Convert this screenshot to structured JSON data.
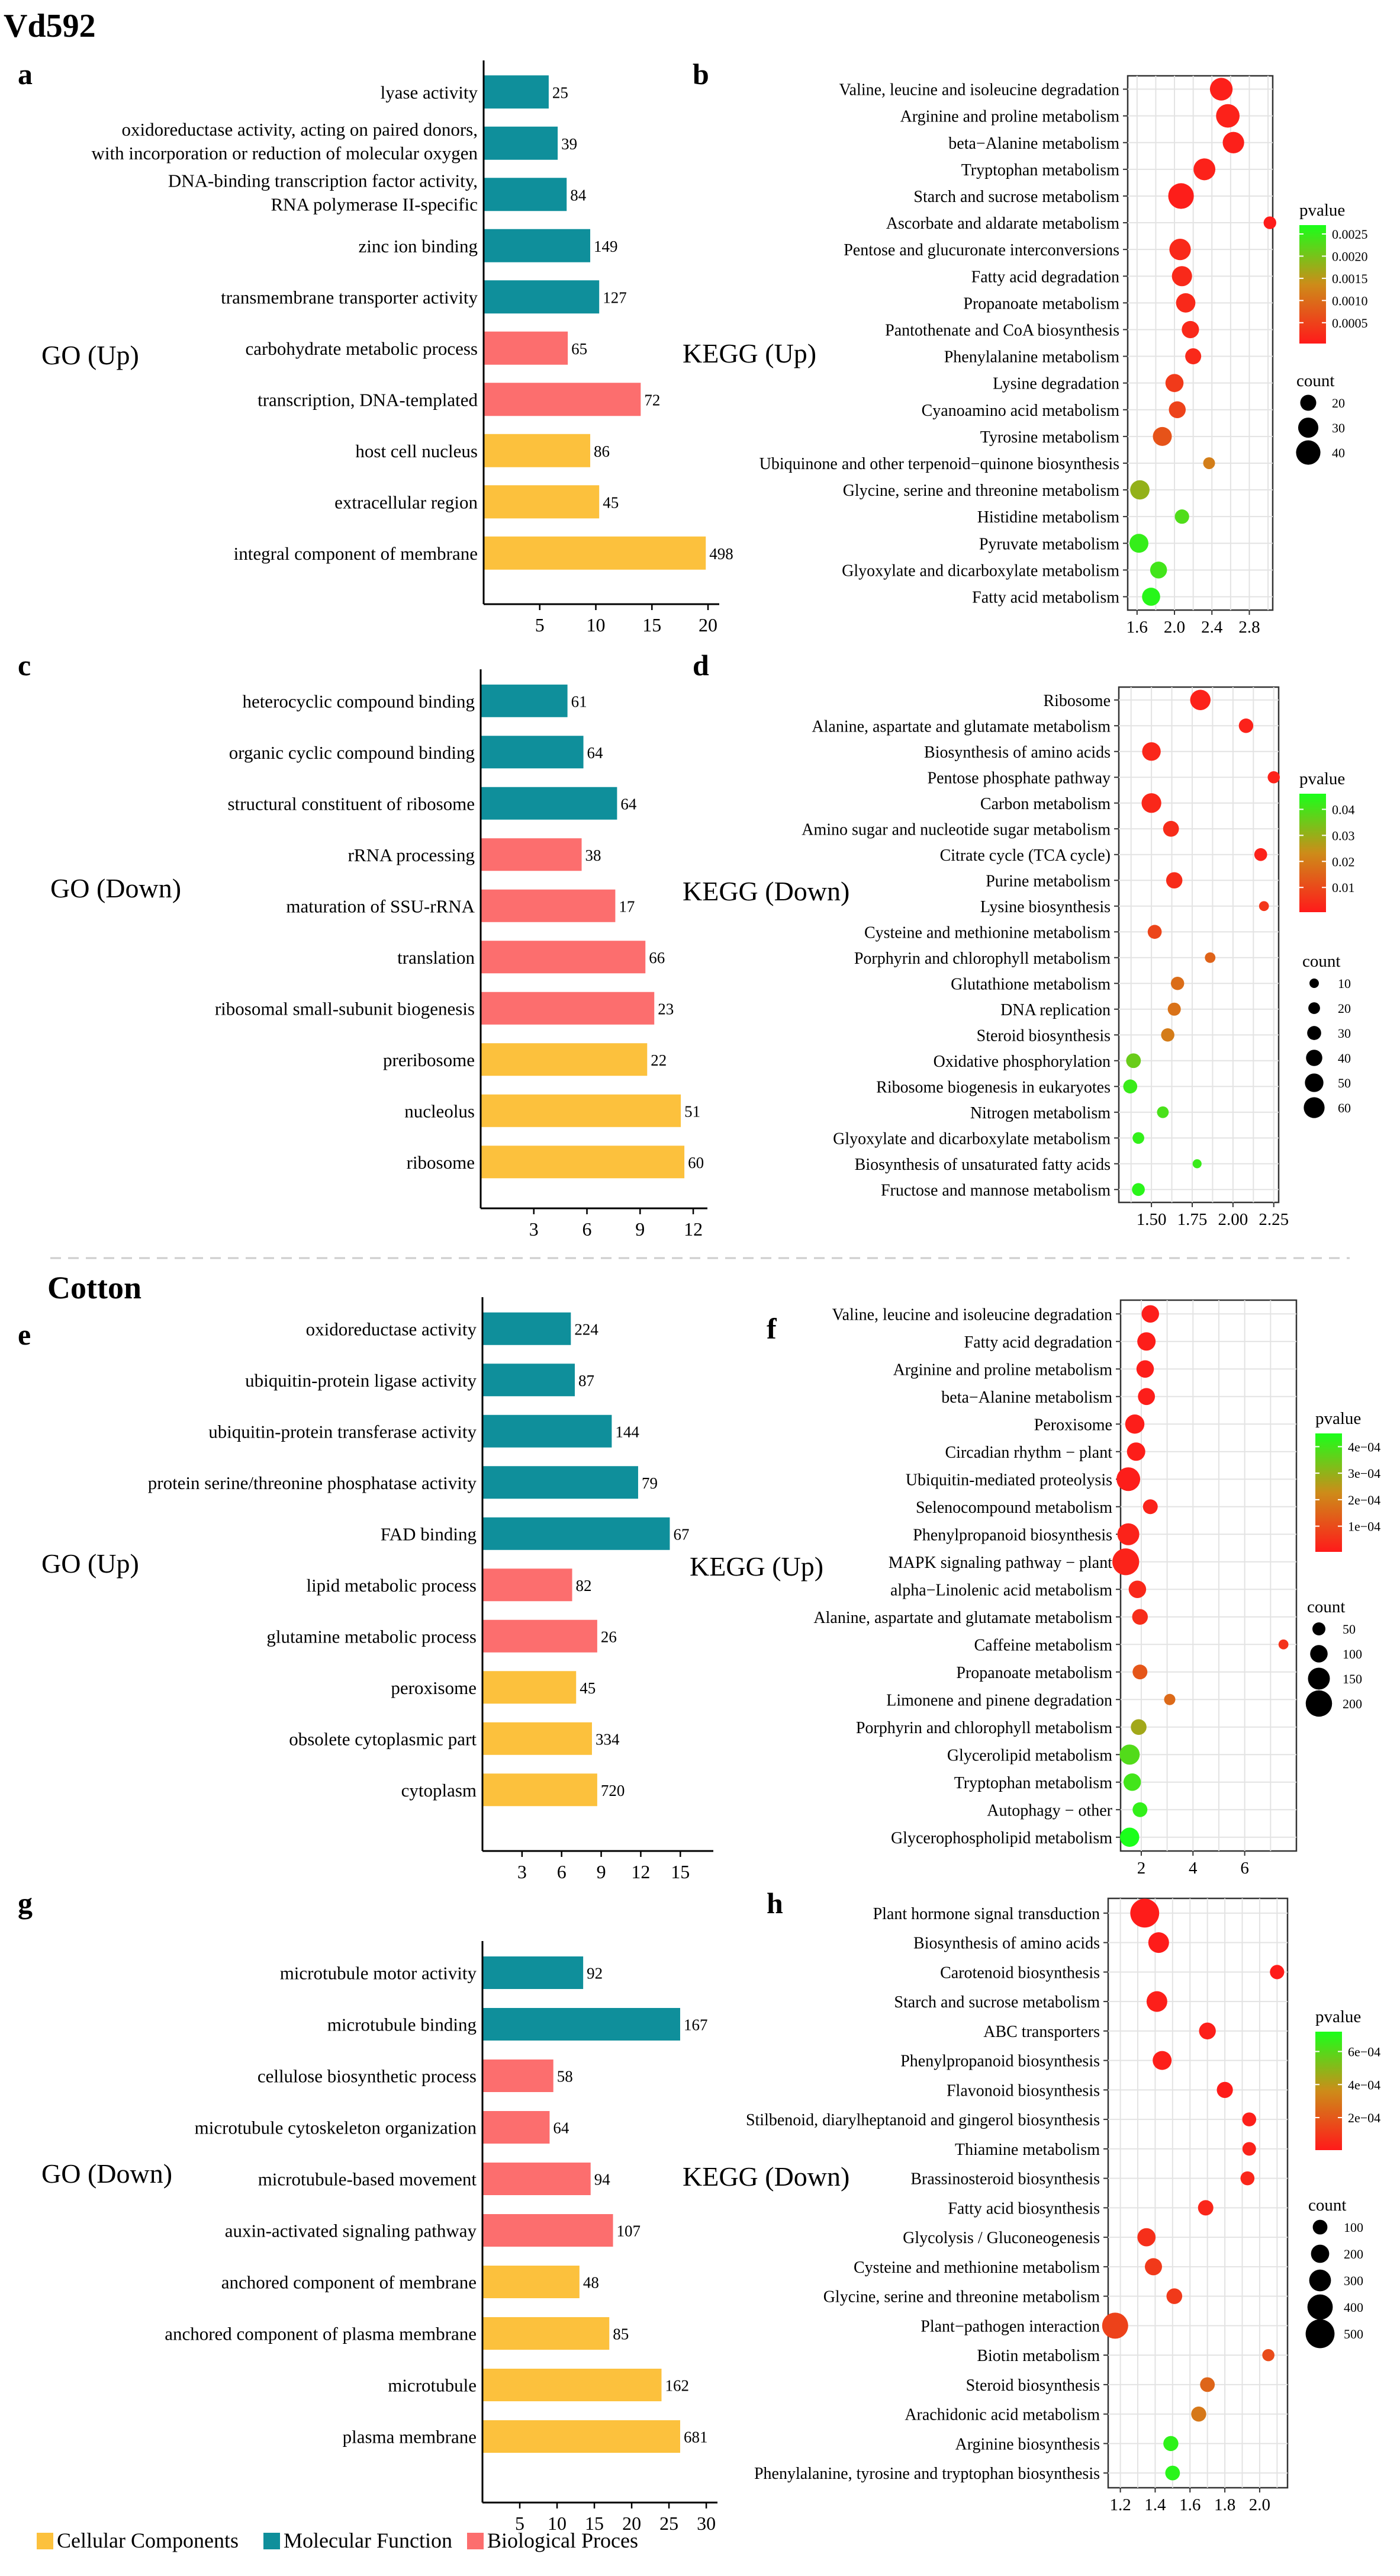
{
  "figure": {
    "sections": [
      {
        "title": "Vd592"
      },
      {
        "title": "Cotton"
      }
    ],
    "legend": {
      "items": [
        {
          "label": "Cellular Components",
          "color": "#FCC13D"
        },
        {
          "label": "Molecular Function",
          "color": "#0F8F9B"
        },
        {
          "label": "Biological Proces",
          "color": "#FC6E6E"
        }
      ]
    }
  },
  "chart_data": [
    {
      "panel": "a",
      "type": "bar",
      "orientation": "horizontal",
      "title": "GO (Up)",
      "categories": [
        "lyase activity",
        "oxidoreductase activity, acting on paired donors,\nwith incorporation or reduction of molecular oxygen",
        "DNA-binding transcription factor activity,\nRNA polymerase II-specific",
        "zinc ion binding",
        "transmembrane transporter activity",
        "carbohydrate metabolic process",
        "transcription, DNA-templated",
        "host cell nucleus",
        "extracellular region",
        "integral component of membrane"
      ],
      "values": [
        5.8,
        6.6,
        7.4,
        9.5,
        10.3,
        7.5,
        14.0,
        9.5,
        10.3,
        19.8
      ],
      "labels": [
        "25",
        "39",
        "84",
        "149",
        "127",
        "65",
        "72",
        "86",
        "45",
        "498"
      ],
      "groups": [
        "MF",
        "MF",
        "MF",
        "MF",
        "MF",
        "BP",
        "BP",
        "CC",
        "CC",
        "CC"
      ],
      "xlim": [
        0,
        21
      ],
      "xticks": [
        5,
        10,
        15,
        20
      ]
    },
    {
      "panel": "b",
      "type": "scatter",
      "title": "KEGG (Up)",
      "categories": [
        "Valine, leucine and isoleucine degradation",
        "Arginine and proline metabolism",
        "beta−Alanine metabolism",
        "Tryptophan metabolism",
        "Starch and sucrose metabolism",
        "Ascorbate and aldarate metabolism",
        "Pentose and glucuronate interconversions",
        "Fatty acid degradation",
        "Propanoate metabolism",
        "Pantothenate and CoA biosynthesis",
        "Phenylalanine metabolism",
        "Lysine degradation",
        "Cyanoamino acid metabolism",
        "Tyrosine metabolism",
        "Ubiquinone and other terpenoid−quinone biosynthesis",
        "Glycine, serine and threonine metabolism",
        "Histidine metabolism",
        "Pyruvate metabolism",
        "Glyoxylate and dicarboxylate metabolism",
        "Fatty acid metabolism"
      ],
      "x": [
        2.5,
        2.57,
        2.63,
        2.32,
        2.07,
        3.02,
        2.06,
        2.08,
        2.12,
        2.17,
        2.2,
        2.0,
        2.03,
        1.87,
        2.37,
        1.63,
        2.08,
        1.62,
        1.83,
        1.75
      ],
      "count": [
        36,
        38,
        33,
        34,
        43,
        12,
        33,
        30,
        28,
        23,
        20,
        25,
        22,
        27,
        10,
        28,
        16,
        27,
        22,
        25
      ],
      "pvalue": [
        0.0001,
        0.00012,
        0.0001,
        0.00012,
        8e-05,
        5e-05,
        0.0002,
        0.0002,
        0.0002,
        0.0002,
        0.0002,
        0.0004,
        0.0005,
        0.0007,
        0.0012,
        0.0018,
        0.0023,
        0.0025,
        0.0024,
        0.0026
      ],
      "xlim": [
        1.5,
        3.05
      ],
      "xticks": [
        1.6,
        2.0,
        2.4,
        2.8
      ],
      "pvalue_legend": {
        "title": "pvalue",
        "ticks": [
          "0.0025",
          "0.0020",
          "0.0015",
          "0.0010",
          "0.0005"
        ],
        "range": [
          3e-05,
          0.0027
        ]
      },
      "count_legend": {
        "title": "count",
        "ticks": [
          20,
          30,
          40
        ],
        "range": [
          10,
          44
        ]
      }
    },
    {
      "panel": "c",
      "type": "bar",
      "orientation": "horizontal",
      "title": "GO (Down)",
      "categories": [
        "heterocyclic compound binding",
        "organic cyclic compound binding",
        "structural constituent of ribosome",
        "rRNA processing",
        "maturation of SSU-rRNA",
        "translation",
        "ribosomal small-subunit biogenesis",
        "preribosome",
        "nucleolus",
        "ribosome"
      ],
      "values": [
        4.9,
        5.8,
        7.7,
        5.7,
        7.6,
        9.3,
        9.8,
        9.4,
        11.3,
        11.5
      ],
      "labels": [
        "61",
        "64",
        "64",
        "38",
        "17",
        "66",
        "23",
        "22",
        "51",
        "60"
      ],
      "groups": [
        "MF",
        "MF",
        "MF",
        "BP",
        "BP",
        "BP",
        "BP",
        "CC",
        "CC",
        "CC"
      ],
      "xlim": [
        0,
        12.8
      ],
      "xticks": [
        3,
        6,
        9,
        12
      ]
    },
    {
      "panel": "d",
      "type": "scatter",
      "title": "KEGG (Down)",
      "categories": [
        "Ribosome",
        "Alanine, aspartate and glutamate metabolism",
        "Biosynthesis of amino acids",
        "Pentose phosphate pathway",
        "Carbon metabolism",
        "Amino sugar and nucleotide sugar metabolism",
        "Citrate cycle (TCA cycle)",
        "Purine metabolism",
        "Lysine biosynthesis",
        "Cysteine and methionine metabolism",
        "Porphyrin and chlorophyll metabolism",
        "Glutathione metabolism",
        "DNA replication",
        "Steroid biosynthesis",
        "Oxidative phosphorylation",
        "Ribosome biogenesis in eukaryotes",
        "Nitrogen metabolism",
        "Glyoxylate and dicarboxylate metabolism",
        "Biosynthesis of unsaturated fatty acids",
        "Fructose and mannose metabolism"
      ],
      "x": [
        1.8,
        2.08,
        1.5,
        2.25,
        1.5,
        1.62,
        2.17,
        1.64,
        2.19,
        1.52,
        1.86,
        1.66,
        1.64,
        1.6,
        1.39,
        1.37,
        1.57,
        1.42,
        1.78,
        1.42
      ],
      "count": [
        58,
        32,
        50,
        22,
        55,
        38,
        25,
        40,
        12,
        30,
        15,
        27,
        26,
        27,
        33,
        30,
        20,
        20,
        8,
        25
      ],
      "pvalue": [
        0.002,
        0.002,
        0.003,
        0.002,
        0.003,
        0.004,
        0.002,
        0.004,
        0.006,
        0.009,
        0.015,
        0.017,
        0.018,
        0.02,
        0.036,
        0.042,
        0.04,
        0.043,
        0.042,
        0.044
      ],
      "xlim": [
        1.3,
        2.28
      ],
      "xticks": [
        1.5,
        1.75,
        2.0,
        2.25
      ],
      "pvalue_legend": {
        "title": "pvalue",
        "ticks": [
          "0.04",
          "0.03",
          "0.02",
          "0.01"
        ],
        "range": [
          0.0005,
          0.046
        ]
      },
      "count_legend": {
        "title": "count",
        "ticks": [
          10,
          20,
          30,
          40,
          50,
          60
        ],
        "range": [
          5,
          62
        ]
      }
    },
    {
      "panel": "e",
      "type": "bar",
      "orientation": "horizontal",
      "title": "GO (Up)",
      "categories": [
        "oxidoreductase activity",
        "ubiquitin-protein ligase activity",
        "ubiquitin-protein transferase activity",
        "protein serine/threonine phosphatase activity",
        "FAD binding",
        "lipid metabolic process",
        "glutamine metabolic process",
        "peroxisome",
        "obsolete cytoplasmic part",
        "cytoplasm"
      ],
      "values": [
        6.7,
        7.0,
        9.8,
        11.8,
        14.2,
        6.8,
        8.7,
        7.1,
        8.3,
        8.7
      ],
      "labels": [
        "224",
        "87",
        "144",
        "79",
        "67",
        "82",
        "26",
        "45",
        "334",
        "720"
      ],
      "groups": [
        "MF",
        "MF",
        "MF",
        "MF",
        "MF",
        "BP",
        "BP",
        "CC",
        "CC",
        "CC"
      ],
      "xlim": [
        0,
        17.5
      ],
      "xticks": [
        3,
        6,
        9,
        12,
        15
      ]
    },
    {
      "panel": "f",
      "type": "scatter",
      "title": "KEGG (Up)",
      "categories": [
        "Valine, leucine and isoleucine degradation",
        "Fatty acid degradation",
        "Arginine and proline metabolism",
        "beta−Alanine metabolism",
        "Peroxisome",
        "Circadian rhythm − plant",
        "Ubiquitin-mediated proteolysis",
        "Selenocompound metabolism",
        "Phenylpropanoid biosynthesis",
        "MAPK signaling pathway − plant",
        "alpha−Linolenic acid metabolism",
        "Alanine, aspartate and glutamate metabolism",
        "Caffeine metabolism",
        "Propanoate metabolism",
        "Limonene and pinene degradation",
        "Porphyrin and chlorophyll metabolism",
        "Glycerolipid metabolism",
        "Tryptophan metabolism",
        "Autophagy − other",
        "Glycerophospholipid metabolism"
      ],
      "x": [
        2.35,
        2.2,
        2.15,
        2.2,
        1.75,
        1.8,
        1.5,
        2.35,
        1.5,
        1.4,
        1.85,
        1.95,
        7.5,
        1.95,
        3.1,
        1.9,
        1.55,
        1.65,
        1.95,
        1.55
      ],
      "count": [
        100,
        110,
        100,
        95,
        120,
        110,
        170,
        70,
        150,
        205,
        100,
        80,
        15,
        70,
        30,
        80,
        130,
        100,
        70,
        120
      ],
      "pvalue": [
        1e-05,
        1e-05,
        1e-05,
        1e-05,
        1e-05,
        1e-05,
        1e-05,
        2e-05,
        2e-05,
        2e-05,
        3e-05,
        4e-05,
        5e-05,
        0.00012,
        0.00016,
        0.00028,
        0.00038,
        0.0004,
        0.00042,
        0.00045
      ],
      "xlim": [
        1.2,
        8.0
      ],
      "xticks": [
        2,
        4,
        6
      ],
      "pvalue_legend": {
        "title": "pvalue",
        "ticks": [
          "4e−04",
          "3e−04",
          "2e−04",
          "1e−04"
        ],
        "range": [
          3e-06,
          0.00045
        ]
      },
      "count_legend": {
        "title": "count",
        "ticks": [
          50,
          100,
          150,
          200
        ],
        "range": [
          10,
          210
        ]
      }
    },
    {
      "panel": "g",
      "type": "bar",
      "orientation": "horizontal",
      "title": "GO (Down)",
      "categories": [
        "microtubule motor activity",
        "microtubule binding",
        "cellulose biosynthetic process",
        "microtubule cytoskeleton organization",
        "microtubule-based movement",
        "auxin-activated signaling pathway",
        "anchored component of membrane",
        "anchored component of plasma membrane",
        "microtubule",
        "plasma membrane"
      ],
      "values": [
        13.5,
        26.5,
        9.5,
        9.0,
        14.5,
        17.5,
        13.0,
        17.0,
        24.0,
        26.5
      ],
      "labels": [
        "92",
        "167",
        "58",
        "64",
        "94",
        "107",
        "48",
        "85",
        "162",
        "681"
      ],
      "groups": [
        "MF",
        "MF",
        "BP",
        "BP",
        "BP",
        "BP",
        "CC",
        "CC",
        "CC",
        "CC"
      ],
      "xlim": [
        0,
        31.5
      ],
      "xticks": [
        5,
        10,
        15,
        20,
        25,
        30
      ]
    },
    {
      "panel": "h",
      "type": "scatter",
      "title": "KEGG (Down)",
      "categories": [
        "Plant hormone signal transduction",
        "Biosynthesis of amino acids",
        "Carotenoid biosynthesis",
        "Starch and sucrose metabolism",
        "ABC transporters",
        "Phenylpropanoid biosynthesis",
        "Flavonoid biosynthesis",
        "Stilbenoid, diarylheptanoid and gingerol biosynthesis",
        "Thiamine metabolism",
        "Brassinosteroid biosynthesis",
        "Fatty acid biosynthesis",
        "Glycolysis / Gluconeogenesis",
        "Cysteine and methionine metabolism",
        "Glycine, serine and threonine metabolism",
        "Plant−pathogen interaction",
        "Biotin metabolism",
        "Steroid biosynthesis",
        "Arachidonic acid metabolism",
        "Arginine biosynthesis",
        "Phenylalanine, tyrosine and tryptophan biosynthesis"
      ],
      "x": [
        1.34,
        1.42,
        2.1,
        1.41,
        1.7,
        1.44,
        1.8,
        1.94,
        1.94,
        1.93,
        1.69,
        1.35,
        1.39,
        1.51,
        1.17,
        2.05,
        1.7,
        1.65,
        1.49,
        1.5
      ],
      "count": [
        500,
        270,
        90,
        270,
        160,
        220,
        140,
        80,
        70,
        80,
        120,
        200,
        170,
        130,
        420,
        30,
        100,
        110,
        110,
        100
      ],
      "pvalue": [
        1e-05,
        1e-05,
        1e-05,
        2e-05,
        2e-05,
        2e-05,
        1e-05,
        2e-05,
        3e-05,
        4e-05,
        4e-05,
        7e-05,
        0.0001,
        0.0001,
        0.00013,
        0.00016,
        0.00024,
        0.0003,
        0.00068,
        0.00069
      ],
      "xlim": [
        1.13,
        2.16
      ],
      "xticks": [
        1.2,
        1.4,
        1.6,
        1.8,
        2.0
      ],
      "pvalue_legend": {
        "title": "pvalue",
        "ticks": [
          "6e−04",
          "4e−04",
          "2e−04"
        ],
        "range": [
          3e-06,
          0.00072
        ]
      },
      "count_legend": {
        "title": "count",
        "ticks": [
          100,
          200,
          300,
          400,
          500
        ],
        "range": [
          20,
          520
        ]
      }
    }
  ]
}
